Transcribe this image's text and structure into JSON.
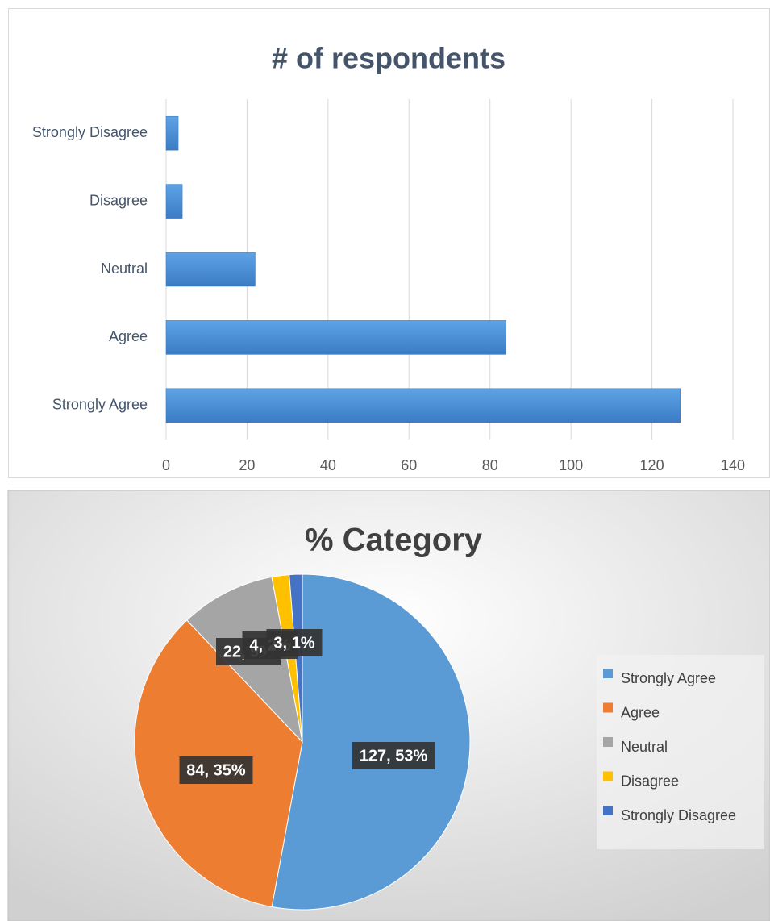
{
  "chart_data": [
    {
      "type": "hbar",
      "title": "# of respondents",
      "categories": [
        "Strongly Agree",
        "Agree",
        "Neutral",
        "Disagree",
        "Strongly Disagree"
      ],
      "values": [
        127,
        84,
        22,
        4,
        3
      ],
      "color": "#4a8fd8",
      "xlim": [
        0,
        140
      ],
      "xticks": [
        0,
        20,
        40,
        60,
        80,
        100,
        120,
        140
      ],
      "grid": true
    },
    {
      "type": "pie",
      "title": "% Category",
      "categories": [
        "Strongly Agree",
        "Agree",
        "Neutral",
        "Disagree",
        "Strongly Disagree"
      ],
      "values": [
        127,
        84,
        22,
        4,
        3
      ],
      "value_labels": [
        "127, 53%",
        "84, 35%",
        "22, 9%",
        "4, 2%",
        "3, 1%"
      ],
      "colors": [
        "#5b9bd5",
        "#ed7d31",
        "#a5a5a5",
        "#ffc000",
        "#4472c4"
      ],
      "legend": "right"
    }
  ]
}
